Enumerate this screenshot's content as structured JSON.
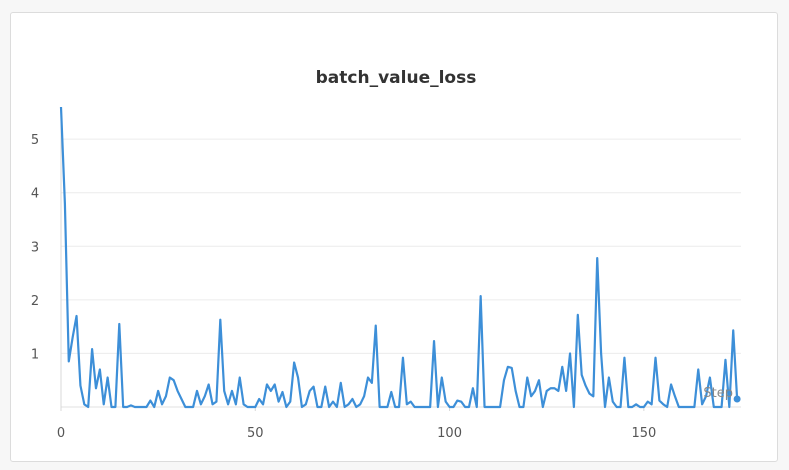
{
  "chart_data": {
    "type": "line",
    "title": "batch_value_loss",
    "xlabel": "Step",
    "ylabel": "",
    "xlim": [
      0,
      175
    ],
    "ylim": [
      0,
      5.6
    ],
    "xticks": [
      0,
      50,
      100,
      150
    ],
    "yticks": [
      1,
      2,
      3,
      4,
      5
    ],
    "grid": true,
    "color": "#3d8fd8",
    "series": [
      {
        "name": "batch_value_loss",
        "x": [
          0,
          1,
          2,
          3,
          4,
          5,
          6,
          7,
          8,
          9,
          10,
          11,
          12,
          13,
          14,
          15,
          16,
          17,
          18,
          19,
          20,
          21,
          22,
          23,
          24,
          25,
          26,
          27,
          28,
          29,
          30,
          31,
          32,
          33,
          34,
          35,
          36,
          37,
          38,
          39,
          40,
          41,
          42,
          43,
          44,
          45,
          46,
          47,
          48,
          49,
          50,
          51,
          52,
          53,
          54,
          55,
          56,
          57,
          58,
          59,
          60,
          61,
          62,
          63,
          64,
          65,
          66,
          67,
          68,
          69,
          70,
          71,
          72,
          73,
          74,
          75,
          76,
          77,
          78,
          79,
          80,
          81,
          82,
          83,
          84,
          85,
          86,
          87,
          88,
          89,
          90,
          91,
          92,
          93,
          94,
          95,
          96,
          97,
          98,
          99,
          100,
          101,
          102,
          103,
          104,
          105,
          106,
          107,
          108,
          109,
          110,
          111,
          112,
          113,
          114,
          115,
          116,
          117,
          118,
          119,
          120,
          121,
          122,
          123,
          124,
          125,
          126,
          127,
          128,
          129,
          130,
          131,
          132,
          133,
          134,
          135,
          136,
          137,
          138,
          139,
          140,
          141,
          142,
          143,
          144,
          145,
          146,
          147,
          148,
          149,
          150,
          151,
          152,
          153,
          154,
          155,
          156,
          157,
          158,
          159,
          160,
          161,
          162,
          163,
          164,
          165,
          166,
          167,
          168,
          169,
          170,
          171,
          172,
          173,
          174
        ],
        "values": [
          5.6,
          3.8,
          0.85,
          1.3,
          1.7,
          0.4,
          0.05,
          0.0,
          1.08,
          0.35,
          0.7,
          0.05,
          0.55,
          0.0,
          0.0,
          1.55,
          0.0,
          0.0,
          0.03,
          0.0,
          0.0,
          0.0,
          0.0,
          0.12,
          0.0,
          0.3,
          0.05,
          0.2,
          0.55,
          0.5,
          0.3,
          0.15,
          0.0,
          0.0,
          0.0,
          0.3,
          0.05,
          0.2,
          0.42,
          0.05,
          0.1,
          1.63,
          0.3,
          0.05,
          0.3,
          0.05,
          0.55,
          0.05,
          0.0,
          0.0,
          0.0,
          0.15,
          0.05,
          0.42,
          0.3,
          0.42,
          0.1,
          0.28,
          0.0,
          0.1,
          0.83,
          0.55,
          0.0,
          0.05,
          0.3,
          0.38,
          0.0,
          0.0,
          0.38,
          0.0,
          0.1,
          0.0,
          0.45,
          0.0,
          0.05,
          0.15,
          0.0,
          0.05,
          0.2,
          0.55,
          0.45,
          1.52,
          0.0,
          0.0,
          0.0,
          0.28,
          0.0,
          0.0,
          0.92,
          0.05,
          0.1,
          0.0,
          0.0,
          0.0,
          0.0,
          0.0,
          1.23,
          0.0,
          0.55,
          0.1,
          0.0,
          0.0,
          0.12,
          0.1,
          0.0,
          0.0,
          0.35,
          0.0,
          2.07,
          0.0,
          0.0,
          0.0,
          0.0,
          0.0,
          0.5,
          0.75,
          0.73,
          0.3,
          0.0,
          0.0,
          0.55,
          0.2,
          0.3,
          0.5,
          0.0,
          0.3,
          0.35,
          0.35,
          0.3,
          0.75,
          0.3,
          1.0,
          0.0,
          1.72,
          0.6,
          0.4,
          0.25,
          0.2,
          2.78,
          1.0,
          0.0,
          0.55,
          0.1,
          0.0,
          0.0,
          0.92,
          0.0,
          0.0,
          0.05,
          0.0,
          0.0,
          0.1,
          0.05,
          0.92,
          0.12,
          0.05,
          0.0,
          0.42,
          0.2,
          0.0,
          0.0,
          0.0,
          0.0,
          0.0,
          0.7,
          0.05,
          0.2,
          0.55,
          0.0,
          0.0,
          0.0,
          0.88,
          0.0,
          1.43,
          0.15
        ]
      }
    ]
  }
}
